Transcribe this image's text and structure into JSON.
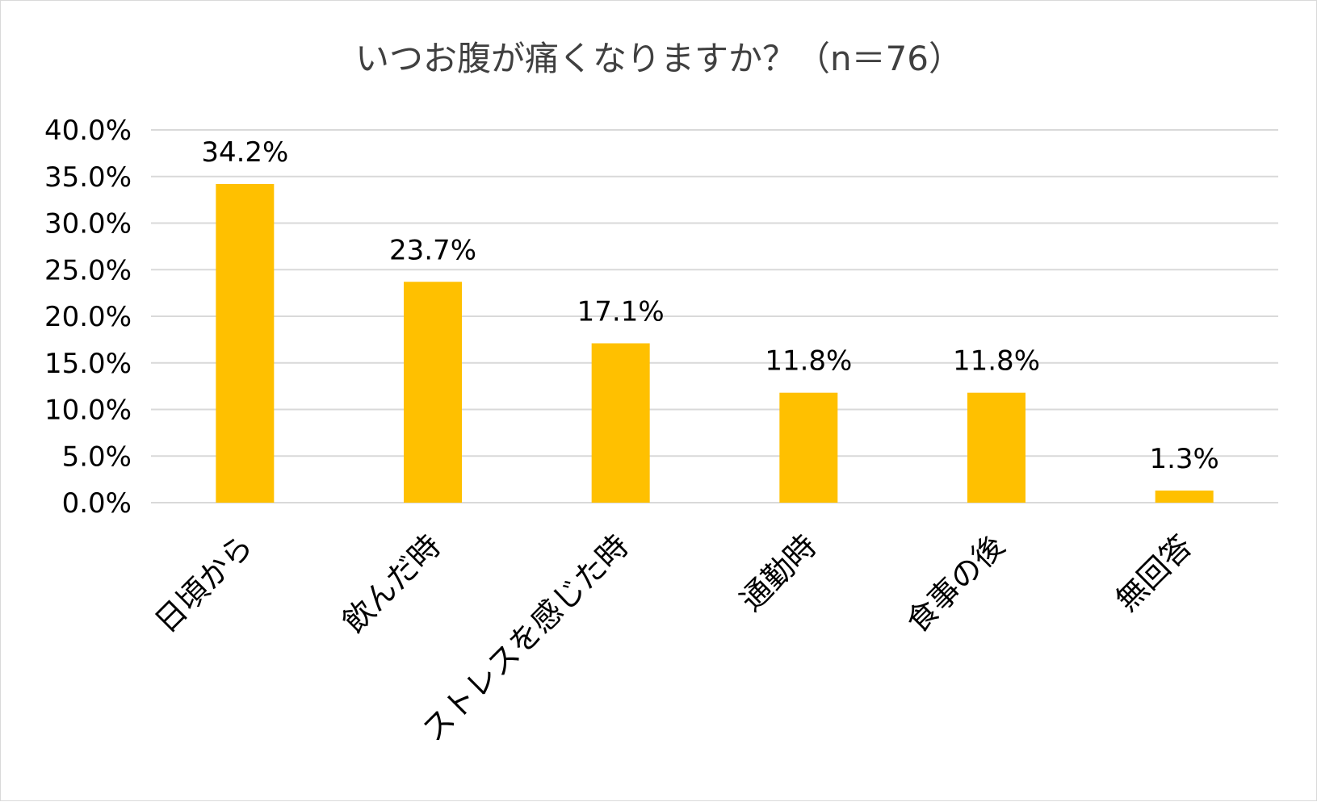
{
  "chart_data": {
    "type": "bar",
    "title": "いつお腹が痛くなりますか？（n＝76）",
    "categories": [
      "日頃から",
      "飲んだ時",
      "ストレスを感じた時",
      "通勤時",
      "食事の後",
      "無回答"
    ],
    "values": [
      34.2,
      23.7,
      17.1,
      11.8,
      11.8,
      1.3
    ],
    "data_labels": [
      "34.2%",
      "23.7%",
      "17.1%",
      "11.8%",
      "11.8%",
      "1.3%"
    ],
    "ylim": [
      0,
      40
    ],
    "yticks": [
      "0.0%",
      "5.0%",
      "10.0%",
      "15.0%",
      "20.0%",
      "25.0%",
      "30.0%",
      "35.0%",
      "40.0%"
    ],
    "grid": true,
    "legend": "none",
    "colors": {
      "bar": "#FFC000",
      "grid": "#d9d9d9",
      "title": "#404040"
    }
  }
}
